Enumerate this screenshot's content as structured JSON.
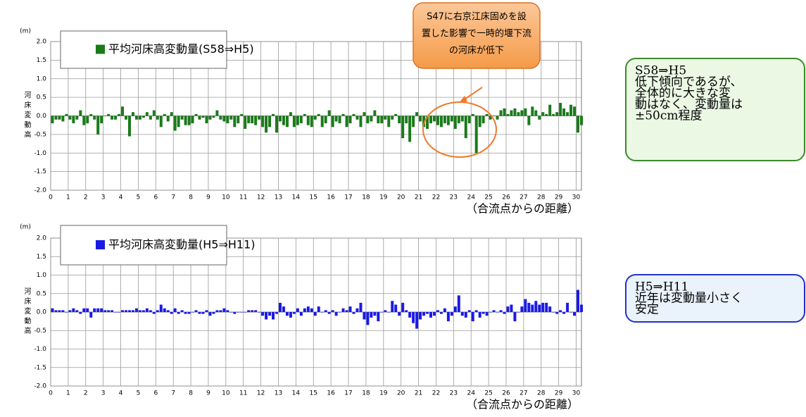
{
  "chart_data": [
    {
      "type": "bar",
      "y_unit": "(m)",
      "y_label": "河床変動高",
      "x_label": "（合流点からの距離）",
      "series": [
        {
          "name": "平均河床高変動量(S58⇒H5)",
          "color": "#1a7a1a",
          "values": [
            -0.2,
            -0.1,
            -0.1,
            -0.15,
            0.05,
            -0.1,
            -0.2,
            -0.1,
            0.15,
            -0.25,
            -0.2,
            0.05,
            -0.1,
            -0.5,
            -0.2,
            0.0,
            0.05,
            -0.1,
            -0.1,
            0.05,
            0.25,
            -0.1,
            -0.55,
            0.1,
            -0.1,
            -0.1,
            -0.05,
            0.1,
            -0.1,
            0.15,
            -0.1,
            -0.3,
            0.05,
            -0.15,
            0.1,
            -0.4,
            -0.3,
            -0.1,
            -0.25,
            -0.25,
            -0.2,
            0.05,
            -0.1,
            -0.05,
            -0.2,
            -0.1,
            -0.05,
            0.15,
            -0.1,
            -0.15,
            -0.2,
            -0.1,
            -0.3,
            -0.2,
            0.05,
            -0.35,
            -0.2,
            -0.2,
            -0.25,
            -0.1,
            -0.3,
            -0.45,
            -0.3,
            0.05,
            -0.45,
            -0.15,
            -0.25,
            -0.3,
            0.1,
            -0.3,
            -0.25,
            -0.2,
            0.05,
            -0.25,
            -0.3,
            -0.1,
            0.05,
            -0.3,
            -0.2,
            0.15,
            -0.3,
            -0.15,
            -0.2,
            0.05,
            -0.3,
            -0.2,
            0.05,
            -0.1,
            -0.3,
            0.1,
            -0.2,
            -0.15,
            0.15,
            -0.2,
            -0.2,
            -0.1,
            -0.3,
            -0.1,
            0.05,
            -0.2,
            -0.6,
            -0.2,
            -0.7,
            -0.3,
            0.1,
            -0.15,
            -0.3,
            -0.35,
            -0.2,
            -0.15,
            -0.25,
            -0.3,
            -0.2,
            -0.25,
            -0.15,
            -0.35,
            -0.2,
            -0.15,
            -0.6,
            -0.2,
            0.05,
            -1.0,
            -0.3,
            -0.2,
            0.05,
            -0.1,
            0.0,
            -0.1,
            0.15,
            0.2,
            0.05,
            0.15,
            0.2,
            0.1,
            0.15,
            0.2,
            -0.25,
            0.25,
            0.15,
            -0.1,
            0.1,
            0.05,
            0.3,
            0.05,
            0.1,
            0.35,
            0.2,
            0.1,
            0.3,
            0.25,
            -0.45,
            -0.25
          ]
        }
      ],
      "x": [
        0,
        0.2,
        0.4,
        0.6,
        0.8,
        1,
        1.2,
        1.4,
        1.6,
        1.8,
        2,
        2.2,
        2.4,
        2.6,
        2.8,
        3,
        3.2,
        3.4,
        3.6,
        3.8,
        4,
        4.2,
        4.4,
        4.6,
        4.8,
        5,
        5.2,
        5.4,
        5.6,
        5.8,
        6,
        6.2,
        6.4,
        6.6,
        6.8,
        7,
        7.2,
        7.4,
        7.6,
        7.8,
        8,
        8.2,
        8.4,
        8.6,
        8.8,
        9,
        9.2,
        9.4,
        9.6,
        9.8,
        10,
        10.2,
        10.4,
        10.6,
        10.8,
        11,
        11.2,
        11.4,
        11.6,
        11.8,
        12,
        12.2,
        12.4,
        12.6,
        12.8,
        13,
        13.2,
        13.4,
        13.6,
        13.8,
        14,
        14.2,
        14.4,
        14.6,
        14.8,
        15,
        15.2,
        15.4,
        15.6,
        15.8,
        16,
        16.2,
        16.4,
        16.6,
        16.8,
        17,
        17.2,
        17.4,
        17.6,
        17.8,
        18,
        18.2,
        18.4,
        18.6,
        18.8,
        19,
        19.2,
        19.4,
        19.6,
        19.8,
        20,
        20.2,
        20.4,
        20.6,
        20.8,
        21,
        21.2,
        21.4,
        21.6,
        21.8,
        22,
        22.2,
        22.4,
        22.6,
        22.8,
        23,
        23.2,
        23.4,
        23.6,
        23.8,
        24,
        24.2,
        24.4,
        24.6,
        24.8,
        25,
        25.2,
        25.4,
        25.6,
        25.8,
        26,
        26.2,
        26.4,
        26.6,
        26.8,
        27,
        27.2,
        27.4,
        27.6,
        27.8,
        28,
        28.2,
        28.4,
        28.6,
        28.8,
        29,
        29.2,
        29.4,
        29.6,
        29.8,
        30,
        30.2
      ],
      "xlim": [
        0,
        30.3
      ],
      "xticks": [
        0,
        1,
        2,
        3,
        4,
        5,
        6,
        7,
        8,
        9,
        10,
        11,
        12,
        13,
        14,
        15,
        16,
        17,
        18,
        19,
        20,
        21,
        22,
        23,
        24,
        25,
        26,
        27,
        28,
        29,
        30
      ],
      "ylim": [
        -2,
        2
      ],
      "yticks": [
        {
          "value": -2,
          "label": "-2.0"
        },
        {
          "value": -1.5,
          "label": "-1.5"
        },
        {
          "value": -1,
          "label": "-1.0"
        },
        {
          "value": -0.5,
          "label": "-0.5"
        },
        {
          "value": 0,
          "label": "0.0"
        },
        {
          "value": 0.5,
          "label": "0.5"
        },
        {
          "value": 1,
          "label": "1.0"
        },
        {
          "value": 1.5,
          "label": "1.5"
        },
        {
          "value": 2,
          "label": "2.0"
        }
      ],
      "grid": true,
      "annotation": [
        "S47に右京江床固めを設",
        "置した影響で一時的堰下流",
        "の河床が低下"
      ],
      "note": [
        "S58⇒H5",
        "低下傾向であるが、",
        "全体的に大きな変",
        "動はなく、変動量は",
        "±50cm程度"
      ]
    },
    {
      "type": "bar",
      "y_unit": "(m)",
      "y_label": "河床変動高",
      "x_label": "（合流点からの距離）",
      "series": [
        {
          "name": "平均河床高変動量(H5⇒H11)",
          "color": "#1a1ae6",
          "values": [
            0.1,
            0.05,
            0.05,
            0.05,
            0.0,
            0.05,
            0.1,
            0.05,
            -0.05,
            0.1,
            0.1,
            -0.15,
            0.1,
            0.1,
            0.1,
            0.05,
            0.05,
            0.05,
            0.0,
            0.0,
            0.05,
            0.05,
            0.05,
            0.05,
            0.1,
            0.05,
            0.05,
            0.1,
            0.05,
            -0.05,
            0.05,
            0.2,
            0.1,
            0.05,
            -0.05,
            0.1,
            -0.05,
            0.05,
            -0.05,
            -0.05,
            0.0,
            0.05,
            -0.05,
            -0.05,
            0.05,
            -0.1,
            -0.05,
            0.05,
            0.05,
            0.1,
            0.05,
            0.0,
            -0.05,
            0.0,
            0.0,
            0.0,
            0.05,
            0.05,
            0.05,
            0.0,
            -0.1,
            -0.2,
            -0.1,
            -0.2,
            -0.05,
            0.25,
            0.15,
            -0.1,
            -0.15,
            -0.05,
            0.1,
            -0.1,
            0.1,
            0.15,
            0.1,
            -0.1,
            0.15,
            0.0,
            0.05,
            -0.05,
            0.05,
            -0.1,
            0.0,
            0.1,
            0.05,
            0.15,
            -0.05,
            0.1,
            0.25,
            -0.2,
            -0.35,
            -0.15,
            -0.1,
            -0.25,
            0.0,
            0.05,
            0.0,
            0.3,
            0.2,
            -0.1,
            0.25,
            0.05,
            -0.15,
            -0.3,
            -0.45,
            -0.2,
            -0.1,
            -0.05,
            -0.15,
            -0.1,
            0.05,
            -0.05,
            0.1,
            -0.25,
            -0.1,
            0.15,
            0.45,
            -0.1,
            -0.15,
            0.05,
            -0.25,
            0.05,
            -0.15,
            -0.05,
            -0.1,
            0.0,
            0.05,
            0.0,
            0.05,
            -0.05,
            0.15,
            0.2,
            -0.25,
            0.0,
            0.15,
            0.35,
            0.25,
            0.2,
            0.3,
            0.2,
            0.25,
            0.25,
            0.15,
            0.0,
            -0.05,
            0.05,
            -0.05,
            0.25,
            0.0,
            -0.1,
            0.6,
            0.2
          ]
        }
      ],
      "x": [
        0,
        0.2,
        0.4,
        0.6,
        0.8,
        1,
        1.2,
        1.4,
        1.6,
        1.8,
        2,
        2.2,
        2.4,
        2.6,
        2.8,
        3,
        3.2,
        3.4,
        3.6,
        3.8,
        4,
        4.2,
        4.4,
        4.6,
        4.8,
        5,
        5.2,
        5.4,
        5.6,
        5.8,
        6,
        6.2,
        6.4,
        6.6,
        6.8,
        7,
        7.2,
        7.4,
        7.6,
        7.8,
        8,
        8.2,
        8.4,
        8.6,
        8.8,
        9,
        9.2,
        9.4,
        9.6,
        9.8,
        10,
        10.2,
        10.4,
        10.6,
        10.8,
        11,
        11.2,
        11.4,
        11.6,
        11.8,
        12,
        12.2,
        12.4,
        12.6,
        12.8,
        13,
        13.2,
        13.4,
        13.6,
        13.8,
        14,
        14.2,
        14.4,
        14.6,
        14.8,
        15,
        15.2,
        15.4,
        15.6,
        15.8,
        16,
        16.2,
        16.4,
        16.6,
        16.8,
        17,
        17.2,
        17.4,
        17.6,
        17.8,
        18,
        18.2,
        18.4,
        18.6,
        18.8,
        19,
        19.2,
        19.4,
        19.6,
        19.8,
        20,
        20.2,
        20.4,
        20.6,
        20.8,
        21,
        21.2,
        21.4,
        21.6,
        21.8,
        22,
        22.2,
        22.4,
        22.6,
        22.8,
        23,
        23.2,
        23.4,
        23.6,
        23.8,
        24,
        24.2,
        24.4,
        24.6,
        24.8,
        25,
        25.2,
        25.4,
        25.6,
        25.8,
        26,
        26.2,
        26.4,
        26.6,
        26.8,
        27,
        27.2,
        27.4,
        27.6,
        27.8,
        28,
        28.2,
        28.4,
        28.6,
        28.8,
        29,
        29.2,
        29.4,
        29.6,
        29.8,
        30,
        30.2
      ],
      "xlim": [
        0,
        30.3
      ],
      "xticks": [
        0,
        1,
        2,
        3,
        4,
        5,
        6,
        7,
        8,
        9,
        10,
        11,
        12,
        13,
        14,
        15,
        16,
        17,
        18,
        19,
        20,
        21,
        22,
        23,
        24,
        25,
        26,
        27,
        28,
        29,
        30
      ],
      "ylim": [
        -2,
        2
      ],
      "yticks": [
        {
          "value": -2,
          "label": "-2.0"
        },
        {
          "value": -1.5,
          "label": "-1.5"
        },
        {
          "value": -1,
          "label": "-1.0"
        },
        {
          "value": -0.5,
          "label": "-0.5"
        },
        {
          "value": 0,
          "label": "0.0"
        },
        {
          "value": 0.5,
          "label": "0.5"
        },
        {
          "value": 1,
          "label": "1.0"
        },
        {
          "value": 1.5,
          "label": "1.5"
        },
        {
          "value": 2,
          "label": "2.0"
        }
      ],
      "grid": true,
      "note": [
        "H5⇒H11",
        "近年は変動量小さく",
        "安定"
      ]
    }
  ]
}
